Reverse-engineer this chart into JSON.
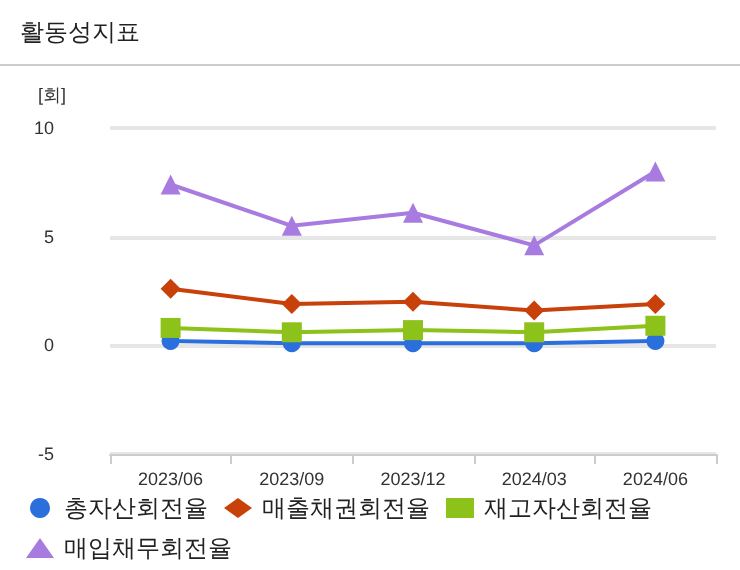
{
  "chart_data": {
    "type": "line",
    "title": "활동성지표",
    "ylabel": "[회]",
    "categories": [
      "2023/06",
      "2023/09",
      "2023/12",
      "2024/03",
      "2024/06"
    ],
    "series": [
      {
        "name": "총자산회전율",
        "color": "#2a6fdb",
        "marker": "circle",
        "values": [
          0.2,
          0.1,
          0.1,
          0.1,
          0.2
        ]
      },
      {
        "name": "매출채권회전율",
        "color": "#c8400a",
        "marker": "diamond",
        "values": [
          2.6,
          1.9,
          2.0,
          1.6,
          1.9
        ]
      },
      {
        "name": "재고자산회전율",
        "color": "#8cc21a",
        "marker": "square",
        "values": [
          0.8,
          0.6,
          0.7,
          0.6,
          0.9
        ]
      },
      {
        "name": "매입채무회전율",
        "color": "#a77be0",
        "marker": "triangle",
        "values": [
          7.4,
          5.5,
          6.1,
          4.6,
          8.0
        ]
      }
    ],
    "ylim": [
      -5,
      10
    ],
    "yticks": [
      -5,
      0,
      5,
      10
    ],
    "grid": "y",
    "legend": "bottom",
    "line_style": "solid"
  }
}
